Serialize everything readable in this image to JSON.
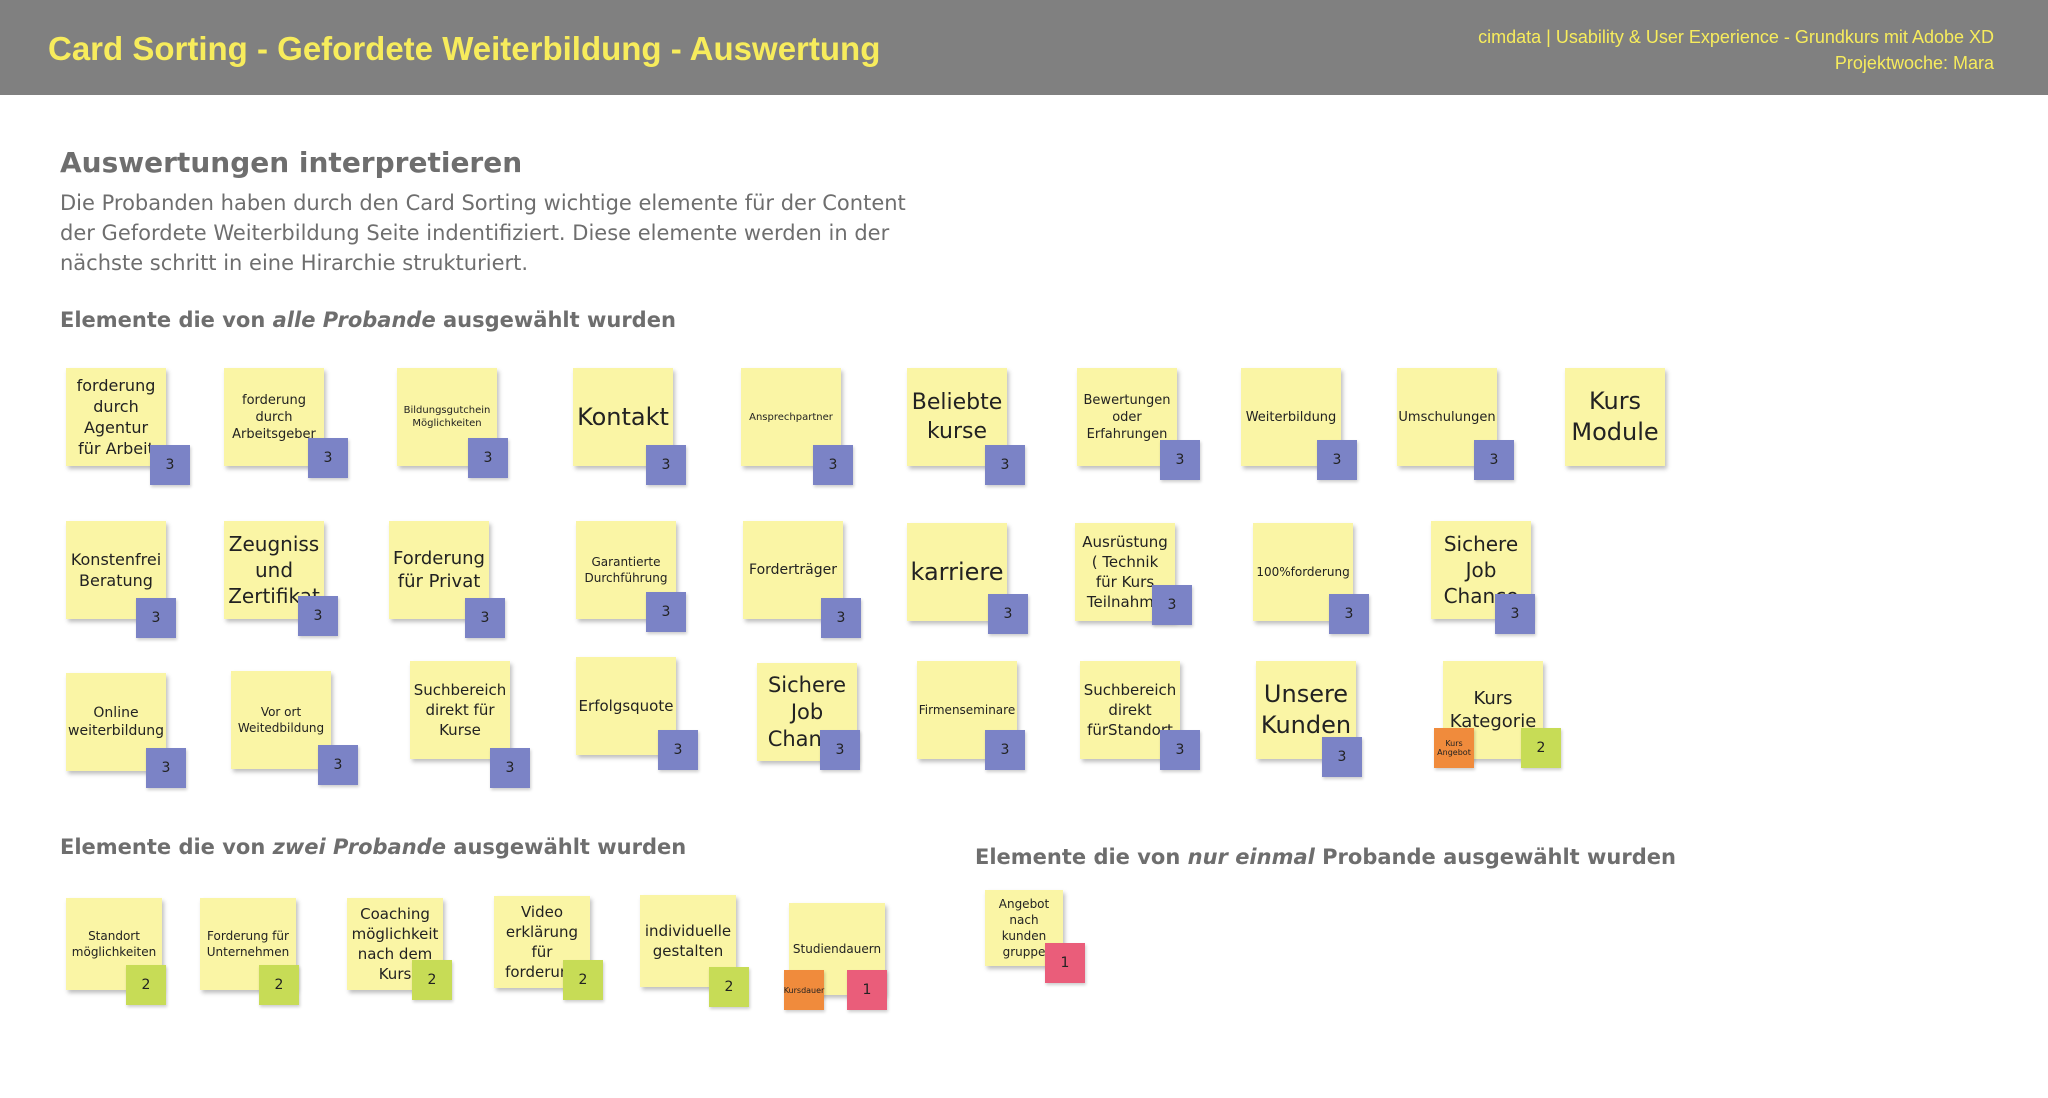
{
  "header": {
    "title": "Card Sorting - Gefordete Weiterbildung - Auswertung",
    "course": "cimdata | Usability & User Experience - Grundkurs mit Adobe XD",
    "week": "Projektwoche: Mara"
  },
  "intro": {
    "title": "Auswertungen interpretieren",
    "text": "Die Probanden haben durch den Card Sorting wichtige elemente für der Content der Gefordete Weiterbildung Seite indentifiziert. Diese elemente werden in der nächste schritt in eine Hirarchie strukturiert."
  },
  "headings": {
    "all": {
      "pre": "Elemente die von ",
      "em": "alle Probande",
      "post": " ausgewählt wurden"
    },
    "two": {
      "pre": "Elemente die von ",
      "em": "zwei Probande",
      "post": " ausgewählt wurden"
    },
    "one": {
      "pre": "Elemente die von ",
      "em": "nur einmal",
      "post": " Probande ausgewählt wurden"
    }
  },
  "notes_all": [
    {
      "label": "forderung durch Agentur für Arbeit",
      "count": "3"
    },
    {
      "label": "forderung durch Arbeitsgeber",
      "count": "3"
    },
    {
      "label": "Bildungsgutchein Möglichkeiten",
      "count": "3"
    },
    {
      "label": "Kontakt",
      "count": "3"
    },
    {
      "label": "Ansprechpartner",
      "count": "3"
    },
    {
      "label": "Beliebte kurse",
      "count": "3"
    },
    {
      "label": "Bewertungen oder Erfahrungen",
      "count": "3"
    },
    {
      "label": "Weiterbildung",
      "count": "3"
    },
    {
      "label": "Umschulungen",
      "count": "3"
    },
    {
      "label": "Kurs Module",
      "count": ""
    },
    {
      "label": "Konstenfrei Beratung",
      "count": "3"
    },
    {
      "label": "Zeugniss und Zertifikat",
      "count": "3"
    },
    {
      "label": "Forderung für Privat",
      "count": "3"
    },
    {
      "label": "Garantierte Durchführung",
      "count": "3"
    },
    {
      "label": "Forderträger",
      "count": "3"
    },
    {
      "label": "karriere",
      "count": "3"
    },
    {
      "label": "Ausrüstung ( Technik für Kurs Teilnahme",
      "count": "3"
    },
    {
      "label": "100%forderung",
      "count": "3"
    },
    {
      "label": "Sichere Job Chance",
      "count": "3"
    },
    {
      "label": "Online weiterbildung",
      "count": "3"
    },
    {
      "label": "Vor ort Weitedbildung",
      "count": "3"
    },
    {
      "label": "Suchbereich direkt für Kurse",
      "count": "3"
    },
    {
      "label": "Erfolgsquote",
      "count": "3"
    },
    {
      "label": "Sichere Job Chance",
      "count": "3"
    },
    {
      "label": "Firmenseminare",
      "count": "3"
    },
    {
      "label": "Suchbereich direkt fürStandort",
      "count": "3"
    },
    {
      "label": "Unsere Kunden",
      "count": "3"
    },
    {
      "label": "Kurs Kategorie",
      "count": "2",
      "extra": "Kurs Angebot"
    }
  ],
  "notes_two": [
    {
      "label": "Standort möglichkeiten",
      "count": "2"
    },
    {
      "label": "Forderung für Unternehmen",
      "count": "2"
    },
    {
      "label": "Coaching möglichkeit nach dem Kurs",
      "count": "2"
    },
    {
      "label": "Video erklärung für forderung",
      "count": "2"
    },
    {
      "label": "individuelle gestalten",
      "count": "2"
    },
    {
      "label": "Studiendauern",
      "count": "1",
      "extra": "Kursdauer"
    }
  ],
  "notes_one": [
    {
      "label": "Angebot nach kunden gruppe",
      "count": "1"
    }
  ],
  "colors": {
    "header_bg": "#808080",
    "header_text": "#f7ec5c",
    "note": "#faf5a5",
    "badge_three": "#7b83c6",
    "badge_two": "#c7dc56",
    "badge_one": "#ea5d7a",
    "badge_alt": "#f08b3c"
  }
}
